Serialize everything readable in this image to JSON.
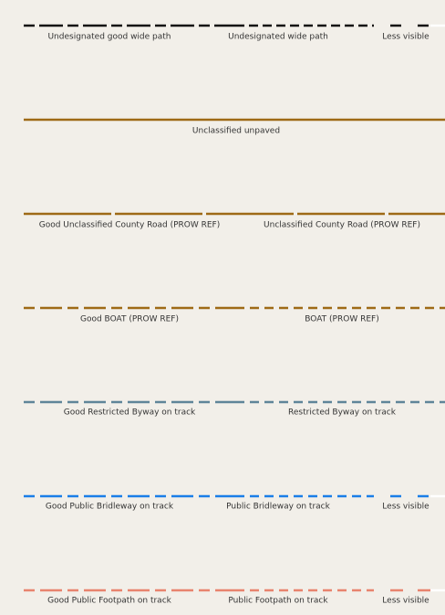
{
  "rows": [
    {
      "labels": [
        "Undesignated good wide path",
        "Undesignated wide path",
        "Less visible"
      ]
    },
    {
      "labels": [
        "Unclassified unpaved"
      ]
    },
    {
      "labels": [
        "Good Unclassified County Road (PROW REF)",
        "Unclassified County Road (PROW REF)"
      ]
    },
    {
      "labels": [
        "Good BOAT (PROW REF)",
        "BOAT (PROW REF)"
      ]
    },
    {
      "labels": [
        "Good Restricted Byway on track",
        "Restricted Byway on track"
      ]
    },
    {
      "labels": [
        "Good Public Bridleway on track",
        "Public Bridleway on track",
        "Less visible"
      ]
    },
    {
      "labels": [
        "Good Public Footpath on track",
        "Public Footpath on track",
        "Less visible"
      ]
    }
  ]
}
